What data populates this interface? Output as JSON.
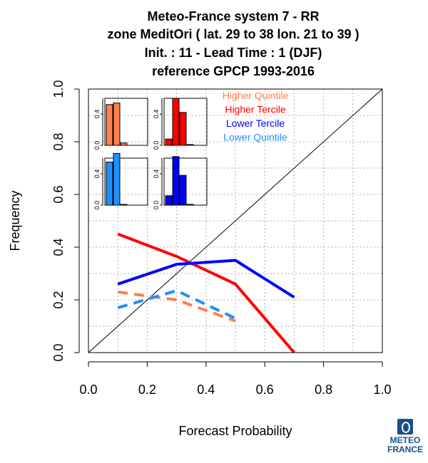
{
  "title_lines": [
    "Meteo-France system 7  -  RR",
    "zone MeditOri ( lat. 29 to 38    lon. 21 to 39 )",
    "Init. : 11  - Lead Time : 1 (DJF)",
    "reference GPCP 1993-2016"
  ],
  "logo": {
    "line1": "METEO",
    "line2": "FRANCE",
    "color": "#1a4f8b"
  },
  "chart_data": {
    "type": "line",
    "xlabel": "Forecast Probability",
    "ylabel": "Frequency",
    "xlim": [
      0,
      1
    ],
    "ylim": [
      0,
      1
    ],
    "x_ticks": [
      "0.0",
      "0.2",
      "0.4",
      "0.6",
      "0.8",
      "1.0"
    ],
    "y_ticks": [
      "0.0",
      "0.2",
      "0.4",
      "0.6",
      "0.8",
      "1.0"
    ],
    "grid": true,
    "diagonal": true,
    "legend_position": "top-right",
    "series": [
      {
        "name": "Higher Quintile",
        "color": "#ff7f50",
        "dashed": true,
        "x": [
          0.1,
          0.3,
          0.5
        ],
        "y": [
          0.23,
          0.2,
          0.12
        ]
      },
      {
        "name": "Higher Tercile",
        "color": "#ff0000",
        "dashed": false,
        "x": [
          0.1,
          0.3,
          0.5,
          0.7
        ],
        "y": [
          0.45,
          0.365,
          0.26,
          0.0
        ]
      },
      {
        "name": "Lower Tercile",
        "color": "#0000ff",
        "dashed": false,
        "x": [
          0.1,
          0.3,
          0.5,
          0.7
        ],
        "y": [
          0.26,
          0.335,
          0.35,
          0.21
        ]
      },
      {
        "name": "Lower Quintile",
        "color": "#1e90ff",
        "dashed": true,
        "x": [
          0.1,
          0.3,
          0.5
        ],
        "y": [
          0.17,
          0.235,
          0.13
        ]
      }
    ],
    "insets": [
      {
        "series": "Higher Quintile",
        "color": "#ff7f50",
        "y_ticks": [
          "0.0",
          "0.4"
        ],
        "ylim": [
          0,
          0.6
        ],
        "values": [
          0.52,
          0.54,
          0.03,
          0.0,
          0.0
        ]
      },
      {
        "series": "Higher Tercile",
        "color": "#ff0000",
        "y_ticks": [
          "0.0",
          "0.4"
        ],
        "ylim": [
          0,
          0.6
        ],
        "values": [
          0.08,
          0.6,
          0.42,
          0.01,
          0.0
        ]
      },
      {
        "series": "Lower Quintile",
        "color": "#1e90ff",
        "y_ticks": [
          "0.0",
          "0.4"
        ],
        "ylim": [
          0,
          0.6
        ],
        "values": [
          0.55,
          0.66,
          0.01,
          0.0,
          0.0
        ]
      },
      {
        "series": "Lower Tercile",
        "color": "#0000ff",
        "y_ticks": [
          "0.0",
          "0.4"
        ],
        "ylim": [
          0,
          0.6
        ],
        "values": [
          0.12,
          0.62,
          0.38,
          0.01,
          0.0
        ]
      }
    ]
  }
}
